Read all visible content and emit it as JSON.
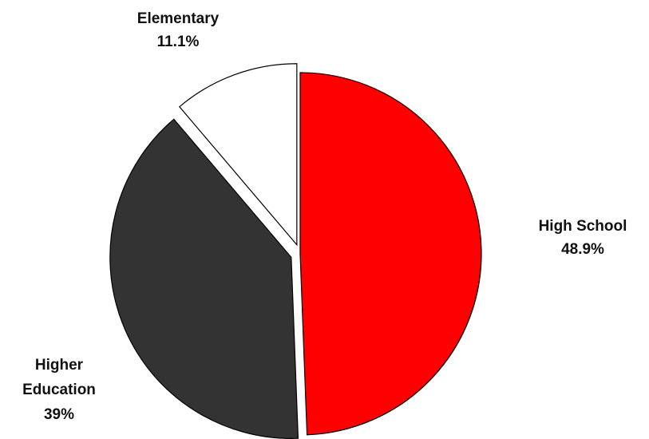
{
  "chart_data": {
    "type": "pie",
    "title": "",
    "slices": [
      {
        "name": "High School",
        "value": 48.9,
        "label": "48.9%",
        "color": "#ff0000",
        "exploded": false
      },
      {
        "name": "Higher Education",
        "value": 39,
        "label": "39%",
        "color": "#333333",
        "exploded": true
      },
      {
        "name": "Elementary",
        "value": 11.1,
        "label": "11.1%",
        "color": "#ffffff",
        "exploded": true
      }
    ],
    "legend": "none"
  }
}
